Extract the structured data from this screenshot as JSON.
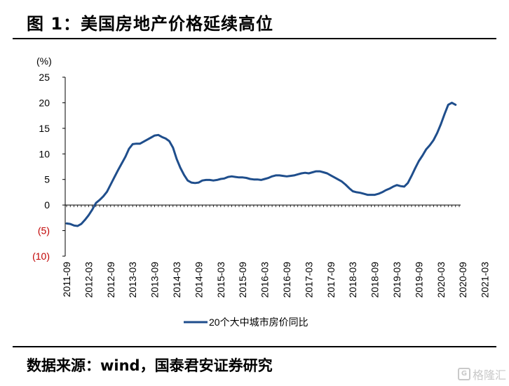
{
  "header": {
    "title": "图 1：美国房地产价格延续高位"
  },
  "footer": {
    "source": "数据来源：wind，国泰君安证券研究",
    "watermark": "格隆汇",
    "watermark_icon": "G"
  },
  "chart_data": {
    "type": "line",
    "unit_label": "(%)",
    "ylim": [
      -10,
      25
    ],
    "yticks": [
      {
        "v": 25,
        "label": "25"
      },
      {
        "v": 20,
        "label": "20"
      },
      {
        "v": 15,
        "label": "15"
      },
      {
        "v": 10,
        "label": "10"
      },
      {
        "v": 5,
        "label": "5"
      },
      {
        "v": 0,
        "label": "0"
      },
      {
        "v": -5,
        "label": "(5)"
      },
      {
        "v": -10,
        "label": "(10)"
      }
    ],
    "negative_label_color": "#c00000",
    "line_color": "#1f4e8c",
    "legend_position": "bottom",
    "xtick_labels": [
      "2011-09",
      "2012-03",
      "2012-09",
      "2013-03",
      "2013-09",
      "2014-03",
      "2014-09",
      "2015-03",
      "2015-09",
      "2016-03",
      "2016-09",
      "2017-03",
      "2017-09",
      "2018-03",
      "2018-09",
      "2019-03",
      "2019-09",
      "2020-03",
      "2020-09",
      "2021-03"
    ],
    "series": [
      {
        "name": "20个大中城市房价同比",
        "start": "2011-09",
        "step_months": 1,
        "values": [
          -3.6,
          -3.7,
          -4.0,
          -4.1,
          -3.7,
          -2.9,
          -2.0,
          -0.9,
          0.4,
          1.0,
          1.7,
          2.6,
          4.0,
          5.4,
          6.8,
          8.1,
          9.4,
          11.0,
          11.9,
          12.0,
          12.0,
          12.4,
          12.8,
          13.2,
          13.6,
          13.7,
          13.3,
          13.0,
          12.5,
          11.2,
          9.0,
          7.3,
          5.9,
          4.8,
          4.4,
          4.3,
          4.4,
          4.8,
          4.9,
          4.9,
          4.8,
          4.9,
          5.1,
          5.2,
          5.5,
          5.6,
          5.5,
          5.4,
          5.4,
          5.3,
          5.1,
          5.0,
          5.0,
          4.9,
          5.1,
          5.3,
          5.6,
          5.8,
          5.8,
          5.7,
          5.6,
          5.7,
          5.8,
          6.0,
          6.2,
          6.3,
          6.2,
          6.4,
          6.6,
          6.6,
          6.4,
          6.2,
          5.8,
          5.4,
          5.0,
          4.6,
          4.0,
          3.3,
          2.7,
          2.5,
          2.4,
          2.2,
          2.0,
          2.0,
          2.0,
          2.2,
          2.5,
          2.9,
          3.2,
          3.6,
          3.9,
          3.7,
          3.6,
          4.3,
          5.7,
          7.2,
          8.6,
          9.7,
          10.9,
          11.7,
          12.7,
          14.1,
          15.8,
          17.8,
          19.6,
          20.0,
          19.6
        ]
      }
    ]
  }
}
